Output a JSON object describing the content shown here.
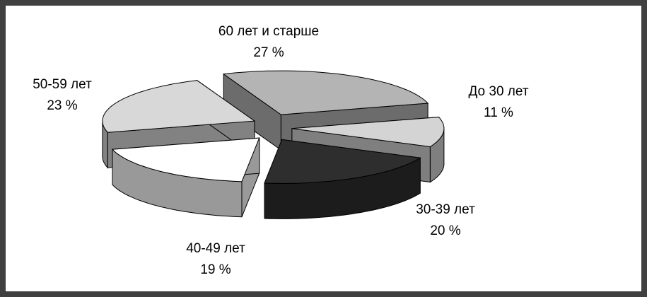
{
  "chart_data": {
    "type": "pie3d",
    "categories": [
      "До 30 лет",
      "30-39 лет",
      "40-49 лет",
      "50-59 лет",
      "60 лет и старше"
    ],
    "values": [
      11,
      20,
      19,
      23,
      27
    ],
    "value_labels": [
      "11 %",
      "20 %",
      "19 %",
      "23 %",
      "27 %"
    ],
    "colors": [
      "#d4d4d4",
      "#2e2e2e",
      "#ffffff",
      "#d8d8d8",
      "#b4b4b4"
    ]
  }
}
